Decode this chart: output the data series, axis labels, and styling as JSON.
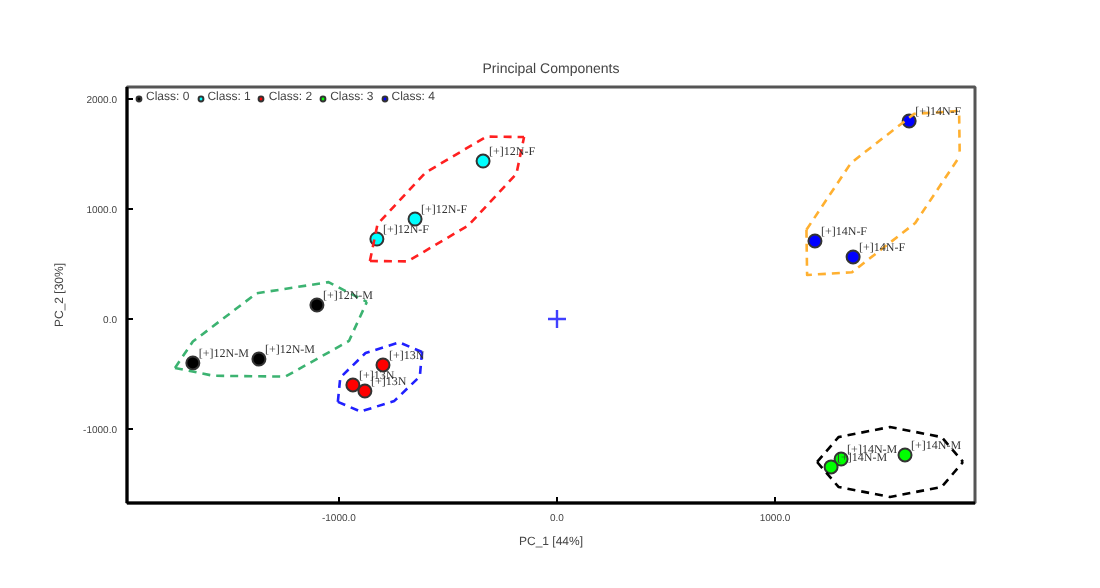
{
  "chart_data": {
    "type": "scatter",
    "title": "Principal Components",
    "xlabel": "PC_1 [44%]",
    "ylabel": "PC_2 [30%]",
    "xlim": [
      -1972,
      1917
    ],
    "ylim": [
      -1673,
      2109
    ],
    "xticks": [
      {
        "value": -1000,
        "label": "-1000.0"
      },
      {
        "value": 0,
        "label": "0.0"
      },
      {
        "value": 1000,
        "label": "1000.0"
      }
    ],
    "yticks": [
      {
        "value": -1000,
        "label": "-1000.0"
      },
      {
        "value": 0,
        "label": "0.0"
      },
      {
        "value": 1000,
        "label": "1000.0"
      },
      {
        "value": 2000,
        "label": "2000.0"
      }
    ],
    "grid": false,
    "legend": "top left",
    "marker": "circle",
    "series": [
      {
        "name": "Class: 0",
        "color": "#000000",
        "x": [
          -1670,
          -1367,
          -1101
        ],
        "values": [
          -400,
          -364,
          127
        ]
      },
      {
        "name": "Class: 1",
        "color": "#00ffff",
        "x": [
          -826,
          -651,
          -339
        ],
        "values": [
          727,
          909,
          1436
        ]
      },
      {
        "name": "Class: 2",
        "color": "#ff0000",
        "x": [
          -798,
          -936,
          -881
        ],
        "values": [
          -418,
          -600,
          -655
        ]
      },
      {
        "name": "Class: 3",
        "color": "#00ff00",
        "x": [
          1596,
          1303,
          1257
        ],
        "values": [
          -1236,
          -1273,
          -1345
        ]
      },
      {
        "name": "Class: 4",
        "color": "#0000ff",
        "x": [
          1615,
          1183,
          1358
        ],
        "values": [
          1800,
          709,
          564
        ]
      },
      {
        "type": "scatter",
        "marker": "cross",
        "color": "#4040ff",
        "x": [
          0
        ],
        "values": [
          0
        ]
      },
      {
        "type": "line",
        "line_style": "dashed",
        "marker": "none",
        "color": "#3cb371",
        "x": [
          -1752,
          -1670,
          -1378,
          -1048,
          -872
        ],
        "values": [
          -445,
          -205,
          233,
          335,
          155
        ]
      },
      {
        "type": "line",
        "line_style": "dashed",
        "marker": "none",
        "color": "#3cb371",
        "x": [
          -1752,
          -1576,
          -1246,
          -954,
          -872
        ],
        "values": [
          -445,
          -516,
          -524,
          -200,
          155
        ]
      },
      {
        "type": "line",
        "line_style": "dashed",
        "marker": "none",
        "color": "#ff2020",
        "x": [
          -858,
          -823,
          -603,
          -324,
          -151
        ],
        "values": [
          527,
          862,
          1331,
          1658,
          1654
        ]
      },
      {
        "type": "line",
        "line_style": "dashed",
        "marker": "none",
        "color": "#ff2020",
        "x": [
          -858,
          -685,
          -406,
          -186,
          -151
        ],
        "values": [
          527,
          524,
          851,
          1320,
          1654
        ]
      },
      {
        "type": "line",
        "line_style": "dashed",
        "marker": "none",
        "color": "#2020ff",
        "x": [
          -1005,
          -994,
          -878,
          -723,
          -619
        ],
        "values": [
          -754,
          -533,
          -309,
          -213,
          -300
        ]
      },
      {
        "type": "line",
        "line_style": "dashed",
        "marker": "none",
        "color": "#2020ff",
        "x": [
          -1005,
          -901,
          -746,
          -629,
          -619
        ],
        "values": [
          -754,
          -842,
          -745,
          -522,
          -300
        ]
      },
      {
        "type": "line",
        "line_style": "dashed",
        "marker": "none",
        "color": "#ffb030",
        "x": [
          1144,
          1348,
          1638,
          1844,
          1847
        ],
        "values": [
          811,
          1418,
          1865,
          1891,
          1480
        ]
      },
      {
        "type": "line",
        "line_style": "dashed",
        "marker": "none",
        "color": "#ffb030",
        "x": [
          1144,
          1147,
          1353,
          1643,
          1847
        ],
        "values": [
          811,
          400,
          425,
          873,
          1480
        ]
      },
      {
        "type": "line",
        "line_style": "dashed",
        "marker": "none",
        "color": "#000000",
        "x": [
          1193,
          1291,
          1527,
          1764,
          1862
        ],
        "values": [
          -1300,
          -1074,
          -982,
          -1074,
          -1300
        ]
      },
      {
        "type": "line",
        "line_style": "dashed",
        "marker": "none",
        "color": "#000000",
        "x": [
          1193,
          1291,
          1527,
          1764,
          1862
        ],
        "values": [
          -1300,
          -1527,
          -1618,
          -1527,
          -1300
        ]
      }
    ],
    "annotations": [
      {
        "text": "[+]12N-M",
        "x": -1670,
        "y": -400
      },
      {
        "text": "[+]12N-M",
        "x": -1367,
        "y": -364
      },
      {
        "text": "[+]12N-M",
        "x": -1101,
        "y": 127
      },
      {
        "text": "[+]12N-F",
        "x": -826,
        "y": 727
      },
      {
        "text": "[+]12N-F",
        "x": -651,
        "y": 909
      },
      {
        "text": "[+]12N-F",
        "x": -339,
        "y": 1436
      },
      {
        "text": "[+]13N",
        "x": -798,
        "y": -418
      },
      {
        "text": "[+]13N",
        "x": -936,
        "y": -600
      },
      {
        "text": "[+]13N",
        "x": -881,
        "y": -655
      },
      {
        "text": "[+]14N-M",
        "x": 1596,
        "y": -1236
      },
      {
        "text": "[+]14N-M",
        "x": 1303,
        "y": -1273
      },
      {
        "text": "[+]14N-M",
        "x": 1257,
        "y": -1345
      },
      {
        "text": "[+]14N-F",
        "x": 1615,
        "y": 1800
      },
      {
        "text": "[+]14N-F",
        "x": 1183,
        "y": 709
      },
      {
        "text": "[+]14N-F",
        "x": 1358,
        "y": 564
      }
    ]
  }
}
